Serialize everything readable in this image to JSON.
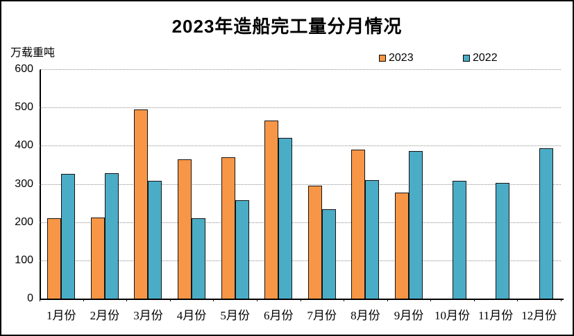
{
  "chart_data": {
    "type": "bar",
    "title": "2023年造船完工量分月情况",
    "unit_label": "万载重吨",
    "categories": [
      "1月份",
      "2月份",
      "3月份",
      "4月份",
      "5月份",
      "6月份",
      "7月份",
      "8月份",
      "9月份",
      "10月份",
      "11月份",
      "12月份"
    ],
    "series": [
      {
        "name": "2023",
        "color": "#F79646",
        "values": [
          211,
          212,
          494,
          364,
          369,
          465,
          296,
          390,
          278,
          null,
          null,
          null
        ]
      },
      {
        "name": "2022",
        "color": "#4BACC6",
        "values": [
          327,
          328,
          309,
          211,
          258,
          421,
          234,
          310,
          386,
          308,
          303,
          394
        ]
      }
    ],
    "ylim": [
      0,
      600
    ],
    "yticks": [
      0,
      100,
      200,
      300,
      400,
      500,
      600
    ],
    "grid": "horizontal-dotted",
    "legend_position": "top-right",
    "axis_color": "#000000",
    "gridline_color": "#8e8e8e",
    "bar_outline_color": "#141414"
  }
}
